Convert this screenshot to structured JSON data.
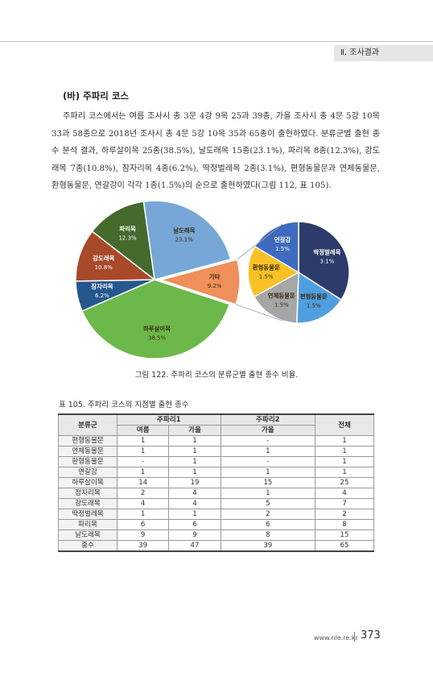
{
  "header": {
    "section": "Ⅱ. 조사결과"
  },
  "section_title": "(바) 주파리 코스",
  "body_text": "주파리 코스에서는 여름 조사시 총 3문 4강 9목 25과 39종, 가을 조사시 총 4문 5강 10목 33과 58종으로 2018년 조사시 총 4문 5강 10목 35과 65종이 출현하였다. 분류군별 출현 종수 분석 결과, 하루살이목 25종(38.5%), 날도래목 15종(23.1%), 파리목 8종(12.3%), 강도래목 7종(10.8%), 잠자리목 4종(6.2%), 딱정벌레목 2종(3.1%), 편형동물문과 연체동물문, 환형동물문, 연갈강이 각각 1종(1.5%)의 순으로 출현하였다(그림 112, 표 105).",
  "figure_caption": "그림 122. 주파리 코스의 분류군별 출현 종수 비율.",
  "chart_data": [
    {
      "type": "pie",
      "title": "",
      "slices": [
        {
          "label": "날도래목",
          "value_label": "23.1%",
          "value": 23.1,
          "color": "#76a7d6"
        },
        {
          "label": "기타",
          "value_label": "9.2%",
          "value": 9.2,
          "color": "#ef8f5a"
        },
        {
          "label": "하루살이목",
          "value_label": "38.5%",
          "value": 38.5,
          "color": "#6cb84a"
        },
        {
          "label": "잠자리목",
          "value_label": "6.2%",
          "value": 6.2,
          "color": "#25578f"
        },
        {
          "label": "강도래목",
          "value_label": "10.8%",
          "value": 10.8,
          "color": "#a8492a"
        },
        {
          "label": "파리목",
          "value_label": "12.3%",
          "value": 12.3,
          "color": "#456a2c"
        }
      ]
    },
    {
      "type": "pie",
      "title": "",
      "slices": [
        {
          "label": "딱정벌레목",
          "value_label": "3.1%",
          "value": 3.1,
          "color": "#2d3b6b"
        },
        {
          "label": "편형동물문",
          "value_label": "1.5%",
          "value": 1.5,
          "color": "#4f9fe0"
        },
        {
          "label": "연체동물문",
          "value_label": "1.5%",
          "value": 1.5,
          "color": "#a6a6a6"
        },
        {
          "label": "환형동물문",
          "value_label": "1.5%",
          "value": 1.5,
          "color": "#f9c124"
        },
        {
          "label": "연갈강",
          "value_label": "1.5%",
          "value": 1.5,
          "color": "#3e6bbf"
        }
      ]
    }
  ],
  "table_caption": "표 105. 주파리 코스의 지점별 출현 종수",
  "table": {
    "h_group": "분류군",
    "h_site1": "주파리1",
    "h_site2": "주파리2",
    "h_total": "전체",
    "h_summer": "여름",
    "h_autumn": "가을",
    "h_autumn2": "가을",
    "rows": [
      {
        "name": "편형동물문",
        "s1_sum": "1",
        "s1_aut": "1",
        "s2_aut": "-",
        "total": "1"
      },
      {
        "name": "연체동물문",
        "s1_sum": "1",
        "s1_aut": "1",
        "s2_aut": "1",
        "total": "1"
      },
      {
        "name": "환형동물문",
        "s1_sum": "-",
        "s1_aut": "1",
        "s2_aut": "-",
        "total": "1"
      },
      {
        "name": "연갈강",
        "s1_sum": "1",
        "s1_aut": "1",
        "s2_aut": "1",
        "total": "1"
      },
      {
        "name": "하루살이목",
        "s1_sum": "14",
        "s1_aut": "19",
        "s2_aut": "15",
        "total": "25"
      },
      {
        "name": "잠자리목",
        "s1_sum": "2",
        "s1_aut": "4",
        "s2_aut": "1",
        "total": "4"
      },
      {
        "name": "강도래목",
        "s1_sum": "4",
        "s1_aut": "4",
        "s2_aut": "5",
        "total": "7"
      },
      {
        "name": "딱정벌레목",
        "s1_sum": "1",
        "s1_aut": "1",
        "s2_aut": "2",
        "total": "2"
      },
      {
        "name": "파리목",
        "s1_sum": "6",
        "s1_aut": "6",
        "s2_aut": "6",
        "total": "8"
      },
      {
        "name": "날도래목",
        "s1_sum": "9",
        "s1_aut": "9",
        "s2_aut": "8",
        "total": "15"
      },
      {
        "name": "종수",
        "s1_sum": "39",
        "s1_aut": "47",
        "s2_aut": "39",
        "total": "65"
      }
    ]
  },
  "footer": {
    "url": "www.nie.re.kr",
    "page": "373"
  }
}
